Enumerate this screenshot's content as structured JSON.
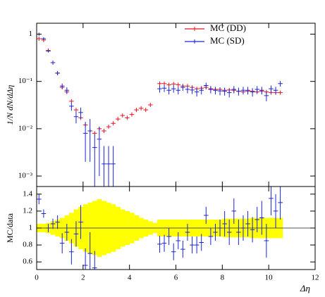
{
  "chart_data": [
    {
      "type": "log-errorbar",
      "ylabel": "1/N dN/dΔη",
      "log_y": true,
      "xlim": [
        0,
        12
      ],
      "ylim": [
        0.0006,
        1.7
      ],
      "yticks": [
        {
          "value": 0.001,
          "label": "10⁻³"
        },
        {
          "value": 0.01,
          "label": "10⁻²"
        },
        {
          "value": 0.1,
          "label": "10⁻¹"
        },
        1
      ],
      "x_half_width": 0.1,
      "x": [
        0.1,
        0.3,
        0.5,
        0.7,
        0.9,
        1.1,
        1.3,
        1.5,
        1.7,
        1.9,
        2.1,
        2.3,
        2.5,
        2.7,
        2.9,
        3.1,
        3.3,
        3.5,
        3.7,
        3.9,
        4.1,
        4.3,
        4.5,
        4.7,
        4.9,
        5.1,
        5.3,
        5.5,
        5.7,
        5.9,
        6.1,
        6.3,
        6.5,
        6.7,
        6.9,
        7.1,
        7.3,
        7.5,
        7.7,
        7.9,
        8.1,
        8.3,
        8.5,
        8.7,
        8.9,
        9.1,
        9.3,
        9.5,
        9.7,
        9.9,
        10.1,
        10.3,
        10.5
      ],
      "legend": "top-right",
      "series": [
        {
          "name": "MC (DD)",
          "color": "#e8141c",
          "values": [
            0.8,
            0.75,
            0.45,
            0.25,
            0.15,
            0.075,
            0.06,
            0.038,
            0.025,
            0.017,
            0.012,
            0.009,
            0.008,
            0.01,
            0.009,
            0.011,
            0.013,
            0.016,
            0.019,
            0.017,
            0.02,
            0.025,
            0.027,
            0.025,
            0.032,
            null,
            0.09,
            0.09,
            0.085,
            0.088,
            0.085,
            0.08,
            0.08,
            0.075,
            0.07,
            0.072,
            0.075,
            0.07,
            0.068,
            0.068,
            0.065,
            0.066,
            0.065,
            0.062,
            0.06,
            0.062,
            0.062,
            0.06,
            0.062,
            0.06,
            0.058,
            0.058,
            0.058
          ]
        },
        {
          "name": "MC (SD)",
          "color": "#1d24d6",
          "values": [
            1.0,
            0.8,
            0.44,
            0.25,
            0.15,
            0.08,
            0.065,
            0.03,
            0.018,
            0.022,
            0.008,
            0.009,
            0.004,
            0.006,
            0.0018,
            0.0018,
            0.0018,
            null,
            null,
            null,
            null,
            null,
            null,
            null,
            null,
            null,
            0.07,
            0.072,
            0.065,
            0.07,
            0.065,
            0.075,
            0.068,
            0.066,
            0.06,
            0.065,
            0.082,
            0.068,
            0.065,
            0.063,
            0.062,
            0.058,
            0.068,
            0.062,
            0.065,
            0.065,
            0.06,
            0.068,
            0.065,
            0.05,
            0.07,
            0.065,
            0.09
          ],
          "errors": [
            0.08,
            0.06,
            0.03,
            0.02,
            0.015,
            0.01,
            0.01,
            0.006,
            0.005,
            0.006,
            0.006,
            0.007,
            0.0035,
            0.005,
            0.0025,
            0.0025,
            0.0025,
            null,
            null,
            null,
            null,
            null,
            null,
            null,
            null,
            null,
            0.012,
            0.012,
            0.012,
            0.012,
            0.012,
            0.012,
            0.012,
            0.012,
            0.012,
            0.012,
            0.012,
            0.012,
            0.012,
            0.012,
            0.012,
            0.012,
            0.012,
            0.012,
            0.012,
            0.012,
            0.012,
            0.012,
            0.012,
            0.012,
            0.012,
            0.012,
            0.012
          ]
        }
      ]
    },
    {
      "type": "ratio",
      "ylabel": "MC/data",
      "xlabel": "Δη",
      "xlim": [
        0,
        12
      ],
      "xticks": [
        0,
        2,
        4,
        6,
        8,
        10,
        12
      ],
      "ylim": [
        0.51,
        1.49
      ],
      "yticks": [
        0.6,
        0.8,
        1,
        1.2,
        1.4
      ],
      "x_half_width": 0.1,
      "x": [
        0.1,
        0.3,
        0.5,
        0.7,
        0.9,
        1.1,
        1.3,
        1.5,
        1.7,
        1.9,
        2.1,
        2.3,
        2.5,
        2.7,
        2.9,
        3.1,
        3.3,
        3.5,
        3.7,
        3.9,
        4.1,
        4.3,
        4.5,
        4.7,
        4.9,
        5.1,
        5.3,
        5.5,
        5.7,
        5.9,
        6.1,
        6.3,
        6.5,
        6.7,
        6.9,
        7.1,
        7.3,
        7.5,
        7.7,
        7.9,
        8.1,
        8.3,
        8.5,
        8.7,
        8.9,
        9.1,
        9.3,
        9.5,
        9.7,
        9.9,
        10.1,
        10.3,
        10.5
      ],
      "band_color": "#ffff00",
      "band": [
        0.05,
        0.05,
        0.06,
        0.08,
        0.1,
        0.12,
        0.15,
        0.18,
        0.22,
        0.25,
        0.28,
        0.3,
        0.32,
        0.34,
        0.32,
        0.3,
        0.28,
        0.25,
        0.22,
        0.2,
        0.18,
        0.15,
        0.12,
        0.1,
        0.08,
        0.06,
        0.1,
        0.1,
        0.1,
        0.1,
        0.1,
        0.1,
        0.1,
        0.1,
        0.1,
        0.1,
        0.1,
        0.1,
        0.1,
        0.1,
        0.11,
        0.11,
        0.11,
        0.11,
        0.11,
        0.11,
        0.12,
        0.12,
        0.12,
        0.12,
        0.12,
        0.12,
        0.12
      ],
      "series": [
        {
          "name": "MC (SD)",
          "color": "#1d24d6",
          "values": [
            1.34,
            1.17,
            1.0,
            1.05,
            1.07,
            0.82,
            0.95,
            0.72,
            0.93,
            1.07,
            0.56,
            0.7,
            0.53,
            null,
            null,
            null,
            null,
            null,
            null,
            null,
            null,
            null,
            null,
            null,
            null,
            null,
            0.81,
            0.82,
            0.9,
            0.72,
            0.85,
            0.75,
            0.95,
            0.8,
            0.8,
            0.83,
            1.15,
            0.9,
            0.95,
            1.0,
            1.05,
            0.95,
            1.2,
            0.95,
            1.0,
            1.05,
            0.98,
            1.1,
            1.12,
            0.85,
            1.35,
            1.2,
            1.3
          ],
          "errors": [
            0.06,
            0.05,
            0.05,
            0.06,
            0.08,
            0.12,
            0.1,
            0.15,
            0.15,
            0.2,
            0.2,
            0.25,
            0.2,
            null,
            null,
            null,
            null,
            null,
            null,
            null,
            null,
            null,
            null,
            null,
            null,
            null,
            0.1,
            0.1,
            0.1,
            0.1,
            0.1,
            0.1,
            0.1,
            0.1,
            0.1,
            0.1,
            0.1,
            0.1,
            0.1,
            0.1,
            0.15,
            0.15,
            0.15,
            0.15,
            0.15,
            0.15,
            0.15,
            0.15,
            0.2,
            0.2,
            0.2,
            0.2,
            0.2
          ]
        }
      ]
    }
  ]
}
